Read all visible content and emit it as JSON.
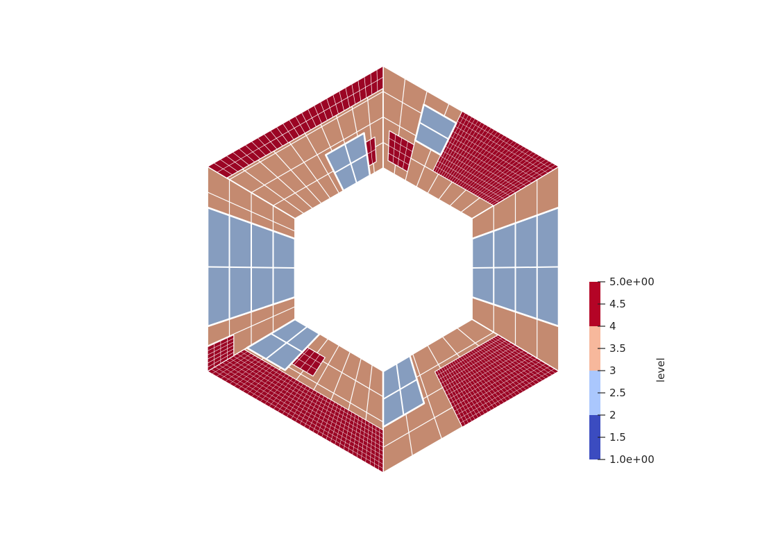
{
  "colorbar": {
    "title": "level",
    "range": [
      1,
      5
    ],
    "ticks": [
      {
        "value": 5.0,
        "label": "5.0e+00"
      },
      {
        "value": 4.5,
        "label": "4.5"
      },
      {
        "value": 4.0,
        "label": "4"
      },
      {
        "value": 3.5,
        "label": "3.5"
      },
      {
        "value": 3.0,
        "label": "3"
      },
      {
        "value": 2.5,
        "label": "2.5"
      },
      {
        "value": 2.0,
        "label": "2"
      },
      {
        "value": 1.5,
        "label": "1.5"
      },
      {
        "value": 1.0,
        "label": "1.0e+00"
      }
    ],
    "bands": [
      {
        "from": 1,
        "to": 2,
        "color": "#3b4cc0"
      },
      {
        "from": 2,
        "to": 3,
        "color": "#aac7fd"
      },
      {
        "from": 3,
        "to": 4,
        "color": "#f7b89c"
      },
      {
        "from": 4,
        "to": 5,
        "color": "#b40426"
      }
    ]
  },
  "palette": {
    "level4_shaded": "#c48a70",
    "level5_shaded": "#9b0524",
    "level2_shaded": "#869dbf",
    "edge": "#ffffff"
  }
}
